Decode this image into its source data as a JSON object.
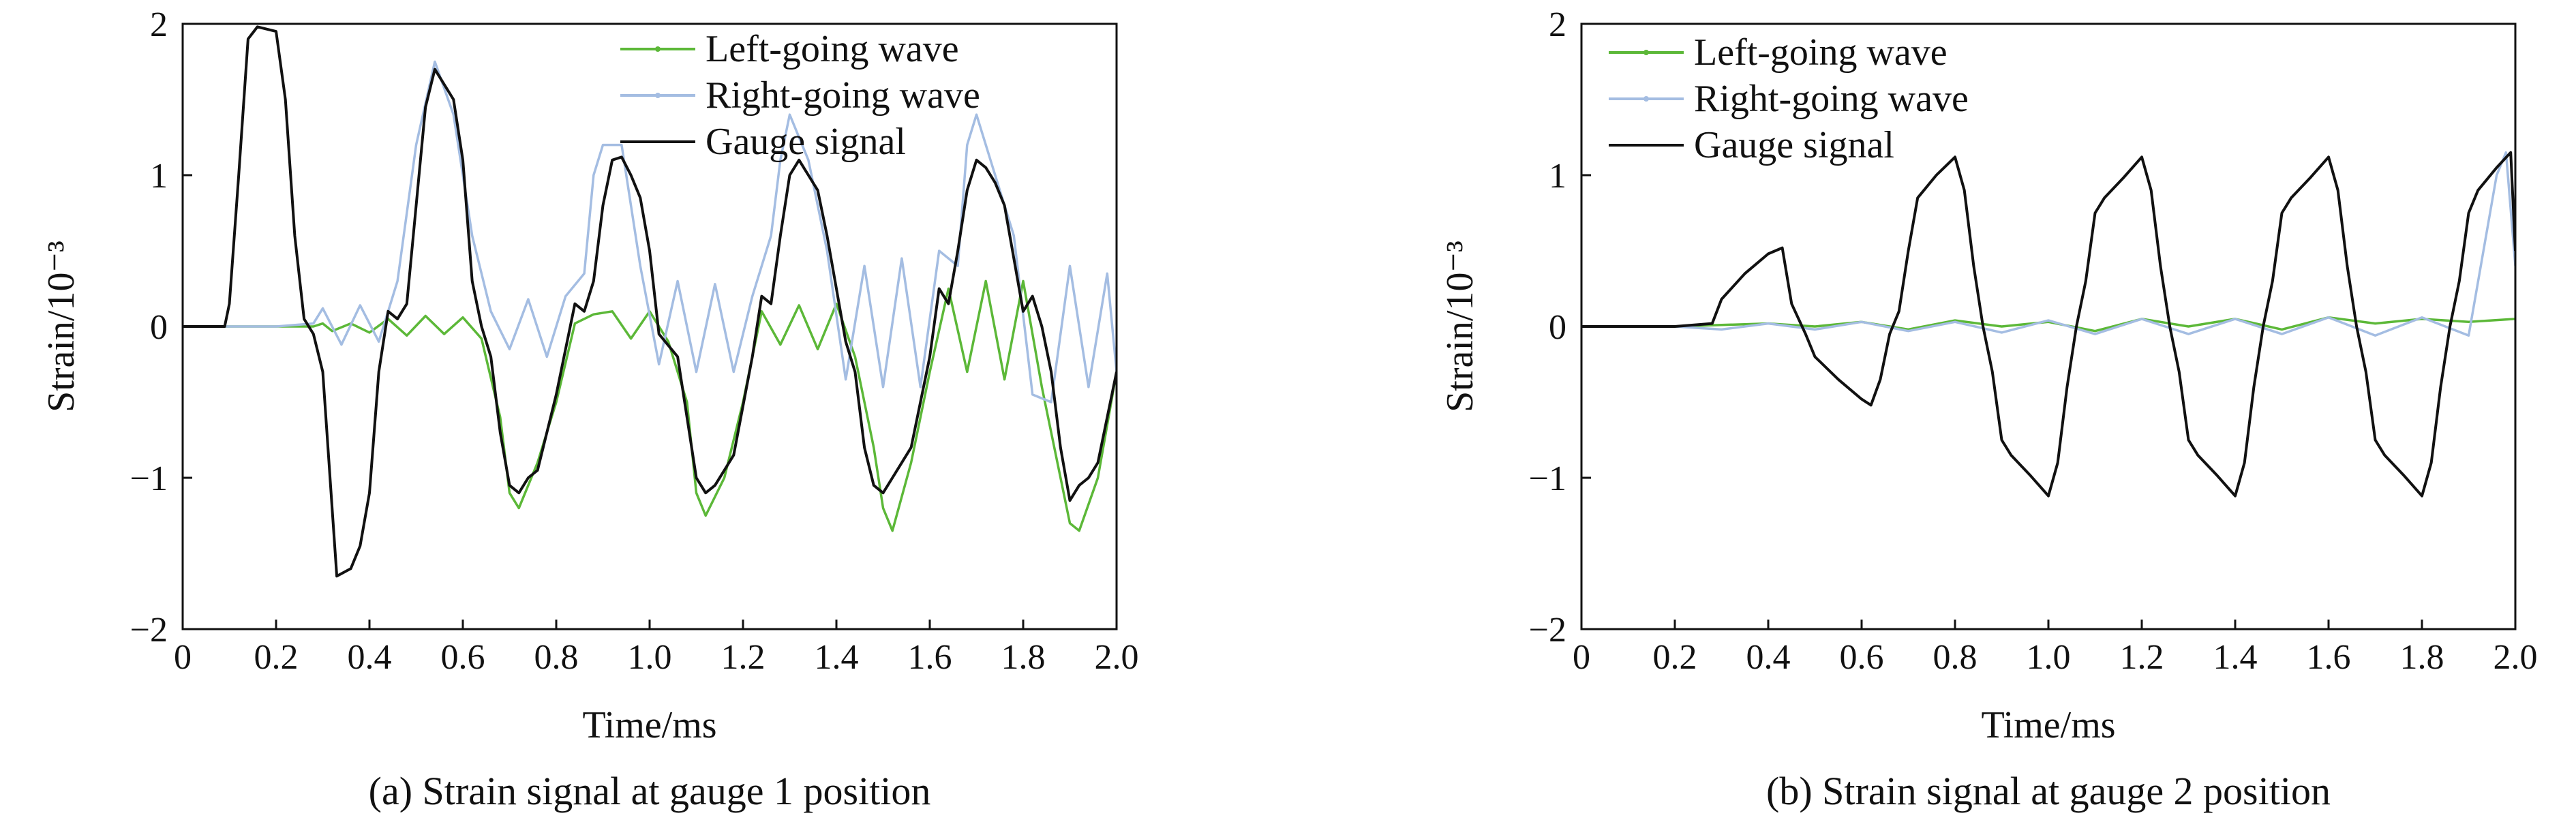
{
  "chart_data": [
    {
      "type": "line",
      "caption": "(a) Strain signal at gauge 1 position",
      "xlabel": "Time/ms",
      "ylabel": "Strain/10⁻³",
      "xlim": [
        0,
        2.0
      ],
      "ylim": [
        -2,
        2
      ],
      "xticks": [
        "0",
        "0.2",
        "0.4",
        "0.6",
        "0.8",
        "1.0",
        "1.2",
        "1.4",
        "1.6",
        "1.8",
        "2.0"
      ],
      "yticks": [
        "−2",
        "−1",
        "0",
        "1",
        "2"
      ],
      "legend_position": "top-right",
      "series": [
        {
          "name": "Left-going wave",
          "color": "#5cb838",
          "x": [
            0,
            0.1,
            0.2,
            0.28,
            0.3,
            0.32,
            0.36,
            0.4,
            0.44,
            0.48,
            0.52,
            0.56,
            0.6,
            0.64,
            0.68,
            0.7,
            0.72,
            0.76,
            0.8,
            0.84,
            0.88,
            0.92,
            0.96,
            1.0,
            1.04,
            1.08,
            1.1,
            1.12,
            1.16,
            1.2,
            1.24,
            1.28,
            1.32,
            1.36,
            1.4,
            1.44,
            1.48,
            1.5,
            1.52,
            1.56,
            1.6,
            1.64,
            1.68,
            1.72,
            1.76,
            1.8,
            1.84,
            1.88,
            1.9,
            1.92,
            1.96,
            2.0
          ],
          "y": [
            0,
            0,
            0,
            0,
            0.02,
            -0.03,
            0.02,
            -0.04,
            0.05,
            -0.06,
            0.07,
            -0.05,
            0.06,
            -0.08,
            -0.6,
            -1.1,
            -1.2,
            -0.9,
            -0.5,
            0.02,
            0.08,
            0.1,
            -0.08,
            0.1,
            -0.1,
            -0.5,
            -1.1,
            -1.25,
            -1.0,
            -0.5,
            0.1,
            -0.12,
            0.14,
            -0.15,
            0.15,
            -0.2,
            -0.8,
            -1.2,
            -1.35,
            -0.9,
            -0.3,
            0.25,
            -0.3,
            0.3,
            -0.35,
            0.3,
            -0.4,
            -1.0,
            -1.3,
            -1.35,
            -1.0,
            -0.3
          ]
        },
        {
          "name": "Right-going wave",
          "color": "#a4bde2",
          "x": [
            0,
            0.1,
            0.2,
            0.28,
            0.3,
            0.34,
            0.38,
            0.42,
            0.44,
            0.46,
            0.5,
            0.54,
            0.58,
            0.62,
            0.66,
            0.7,
            0.74,
            0.78,
            0.82,
            0.86,
            0.88,
            0.9,
            0.94,
            0.98,
            1.02,
            1.06,
            1.1,
            1.14,
            1.18,
            1.22,
            1.26,
            1.28,
            1.3,
            1.34,
            1.38,
            1.42,
            1.46,
            1.5,
            1.54,
            1.58,
            1.62,
            1.66,
            1.68,
            1.7,
            1.74,
            1.78,
            1.82,
            1.86,
            1.9,
            1.94,
            1.98,
            2.0
          ],
          "y": [
            0,
            0,
            0,
            0.02,
            0.12,
            -0.12,
            0.14,
            -0.1,
            0.1,
            0.3,
            1.2,
            1.75,
            1.4,
            0.6,
            0.1,
            -0.15,
            0.18,
            -0.2,
            0.2,
            0.35,
            1.0,
            1.2,
            1.2,
            0.4,
            -0.25,
            0.3,
            -0.3,
            0.28,
            -0.3,
            0.2,
            0.6,
            1.1,
            1.4,
            1.1,
            0.5,
            -0.35,
            0.4,
            -0.4,
            0.45,
            -0.4,
            0.5,
            0.4,
            1.2,
            1.4,
            1.0,
            0.6,
            -0.45,
            -0.5,
            0.4,
            -0.4,
            0.35,
            -0.3
          ]
        },
        {
          "name": "Gauge signal",
          "color": "#111111",
          "x": [
            0,
            0.09,
            0.1,
            0.12,
            0.14,
            0.16,
            0.2,
            0.22,
            0.24,
            0.26,
            0.28,
            0.3,
            0.32,
            0.33,
            0.36,
            0.38,
            0.4,
            0.42,
            0.44,
            0.46,
            0.48,
            0.5,
            0.52,
            0.54,
            0.58,
            0.6,
            0.62,
            0.64,
            0.66,
            0.68,
            0.7,
            0.72,
            0.74,
            0.76,
            0.8,
            0.84,
            0.86,
            0.88,
            0.9,
            0.92,
            0.94,
            0.96,
            0.98,
            1.0,
            1.02,
            1.06,
            1.08,
            1.1,
            1.12,
            1.14,
            1.16,
            1.18,
            1.22,
            1.24,
            1.26,
            1.28,
            1.3,
            1.32,
            1.34,
            1.36,
            1.38,
            1.42,
            1.44,
            1.46,
            1.48,
            1.5,
            1.52,
            1.54,
            1.56,
            1.6,
            1.62,
            1.64,
            1.66,
            1.68,
            1.7,
            1.72,
            1.74,
            1.76,
            1.8,
            1.82,
            1.84,
            1.86,
            1.88,
            1.9,
            1.92,
            1.94,
            1.96,
            2.0
          ],
          "y": [
            0,
            0,
            0.15,
            1.0,
            1.9,
            1.98,
            1.95,
            1.5,
            0.6,
            0.05,
            -0.05,
            -0.3,
            -1.2,
            -1.65,
            -1.6,
            -1.45,
            -1.1,
            -0.3,
            0.1,
            0.05,
            0.15,
            0.8,
            1.45,
            1.7,
            1.5,
            1.1,
            0.3,
            0.0,
            -0.2,
            -0.7,
            -1.05,
            -1.1,
            -1.0,
            -0.95,
            -0.45,
            0.15,
            0.1,
            0.3,
            0.8,
            1.1,
            1.12,
            1.0,
            0.85,
            0.5,
            -0.05,
            -0.2,
            -0.6,
            -1.0,
            -1.1,
            -1.05,
            -0.95,
            -0.85,
            -0.2,
            0.2,
            0.15,
            0.6,
            1.0,
            1.1,
            1.0,
            0.9,
            0.6,
            -0.1,
            -0.3,
            -0.8,
            -1.05,
            -1.1,
            -1.0,
            -0.9,
            -0.8,
            -0.2,
            0.25,
            0.15,
            0.5,
            0.9,
            1.1,
            1.05,
            0.95,
            0.8,
            0.1,
            0.2,
            0.0,
            -0.3,
            -0.8,
            -1.15,
            -1.05,
            -1.0,
            -0.9,
            -0.3
          ]
        }
      ]
    },
    {
      "type": "line",
      "caption": "(b) Strain signal at gauge 2 position",
      "xlabel": "Time/ms",
      "ylabel": "Strain/10⁻³",
      "xlim": [
        0,
        2.0
      ],
      "ylim": [
        -2,
        2
      ],
      "xticks": [
        "0",
        "0.2",
        "0.4",
        "0.6",
        "0.8",
        "1.0",
        "1.2",
        "1.4",
        "1.6",
        "1.8",
        "2.0"
      ],
      "yticks": [
        "−2",
        "−1",
        "0",
        "1",
        "2"
      ],
      "legend_position": "top-right",
      "series": [
        {
          "name": "Left-going wave",
          "color": "#5cb838",
          "x": [
            0,
            0.1,
            0.2,
            0.3,
            0.4,
            0.5,
            0.6,
            0.7,
            0.8,
            0.9,
            1.0,
            1.1,
            1.2,
            1.3,
            1.4,
            1.5,
            1.6,
            1.7,
            1.8,
            1.9,
            2.0
          ],
          "y": [
            0,
            0,
            0,
            0.01,
            0.02,
            0.0,
            0.03,
            -0.02,
            0.04,
            0.0,
            0.03,
            -0.03,
            0.05,
            0.0,
            0.05,
            -0.02,
            0.06,
            0.02,
            0.05,
            0.03,
            0.05
          ]
        },
        {
          "name": "Right-going wave",
          "color": "#a4bde2",
          "x": [
            0,
            0.1,
            0.2,
            0.3,
            0.4,
            0.5,
            0.6,
            0.7,
            0.8,
            0.9,
            1.0,
            1.1,
            1.2,
            1.3,
            1.4,
            1.5,
            1.6,
            1.7,
            1.8,
            1.9,
            1.96,
            1.98,
            2.0
          ],
          "y": [
            0,
            0,
            0,
            -0.02,
            0.02,
            -0.02,
            0.03,
            -0.03,
            0.03,
            -0.04,
            0.04,
            -0.05,
            0.05,
            -0.05,
            0.05,
            -0.05,
            0.06,
            -0.06,
            0.06,
            -0.06,
            1.0,
            1.15,
            0.4
          ]
        },
        {
          "name": "Gauge signal",
          "color": "#111111",
          "x": [
            0,
            0.1,
            0.2,
            0.28,
            0.3,
            0.35,
            0.4,
            0.43,
            0.45,
            0.48,
            0.5,
            0.55,
            0.6,
            0.62,
            0.64,
            0.66,
            0.68,
            0.7,
            0.72,
            0.76,
            0.8,
            0.82,
            0.84,
            0.86,
            0.88,
            0.9,
            0.92,
            0.96,
            1.0,
            1.02,
            1.04,
            1.06,
            1.08,
            1.1,
            1.12,
            1.16,
            1.2,
            1.22,
            1.24,
            1.26,
            1.28,
            1.3,
            1.32,
            1.36,
            1.4,
            1.42,
            1.44,
            1.46,
            1.48,
            1.5,
            1.52,
            1.56,
            1.6,
            1.62,
            1.64,
            1.66,
            1.68,
            1.7,
            1.72,
            1.76,
            1.8,
            1.82,
            1.84,
            1.86,
            1.88,
            1.9,
            1.92,
            1.96,
            1.99,
            2.0
          ],
          "y": [
            0,
            0,
            0,
            0.02,
            0.18,
            0.35,
            0.48,
            0.52,
            0.15,
            -0.05,
            -0.2,
            -0.35,
            -0.48,
            -0.52,
            -0.35,
            -0.05,
            0.1,
            0.5,
            0.85,
            1.0,
            1.12,
            0.9,
            0.4,
            0.0,
            -0.3,
            -0.75,
            -0.85,
            -0.98,
            -1.12,
            -0.9,
            -0.4,
            0.0,
            0.3,
            0.75,
            0.85,
            0.98,
            1.12,
            0.9,
            0.4,
            0.0,
            -0.3,
            -0.75,
            -0.85,
            -0.98,
            -1.12,
            -0.9,
            -0.4,
            0.0,
            0.3,
            0.75,
            0.85,
            0.98,
            1.12,
            0.9,
            0.4,
            0.0,
            -0.3,
            -0.75,
            -0.85,
            -0.98,
            -1.12,
            -0.9,
            -0.4,
            0.0,
            0.3,
            0.75,
            0.9,
            1.05,
            1.15,
            0.5
          ]
        }
      ]
    }
  ]
}
